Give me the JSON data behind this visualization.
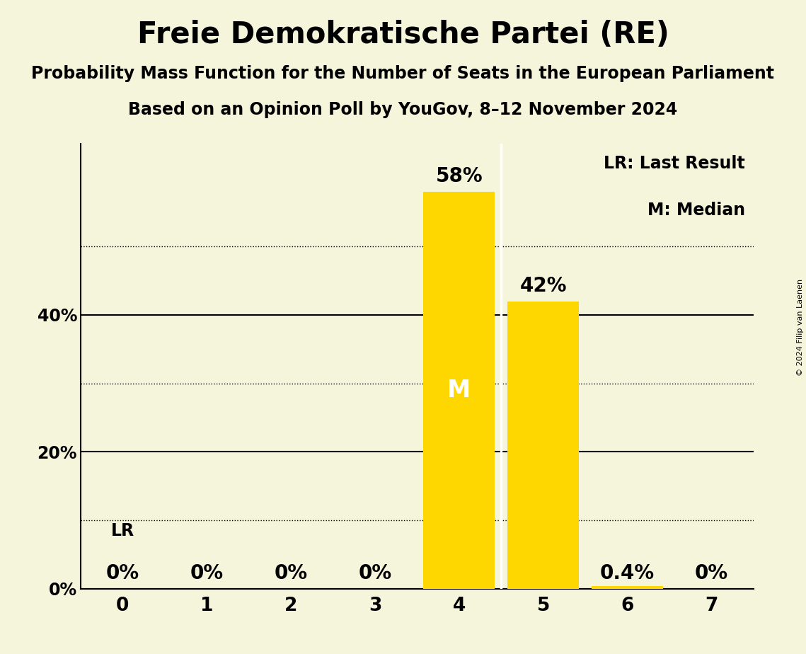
{
  "title": "Freie Demokratische Partei (RE)",
  "subtitle1": "Probability Mass Function for the Number of Seats in the European Parliament",
  "subtitle2": "Based on an Opinion Poll by YouGov, 8–12 November 2024",
  "copyright": "© 2024 Filip van Laenen",
  "categories": [
    0,
    1,
    2,
    3,
    4,
    5,
    6,
    7
  ],
  "values": [
    0.0,
    0.0,
    0.0,
    0.0,
    0.58,
    0.42,
    0.004,
    0.0
  ],
  "bar_color": "#FFD700",
  "background_color": "#F5F5DC",
  "median_seat": 4,
  "lr_seat": 0,
  "label_LR": "LR",
  "label_M": "M",
  "legend_lr": "LR: Last Result",
  "legend_m": "M: Median",
  "solid_ticks": [
    0.0,
    0.2,
    0.4
  ],
  "dotted_ticks": [
    0.1,
    0.3,
    0.5
  ],
  "ylim": [
    0,
    0.65
  ],
  "bar_width": 0.85,
  "title_fontsize": 30,
  "subtitle_fontsize": 17,
  "tick_fontsize": 17,
  "annot_fontsize": 17,
  "bar_label_fontsize": 20,
  "legend_fontsize": 17,
  "m_fontsize": 24
}
